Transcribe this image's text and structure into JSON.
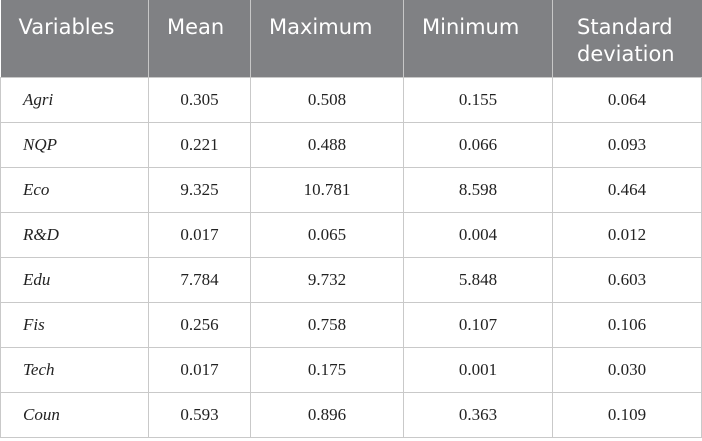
{
  "table": {
    "header": [
      "Variables",
      "Mean",
      "Maximum",
      "Minimum",
      "Standard deviation"
    ],
    "rows": [
      [
        "Agri",
        "0.305",
        "0.508",
        "0.155",
        "0.064"
      ],
      [
        "NQP",
        "0.221",
        "0.488",
        "0.066",
        "0.093"
      ],
      [
        "Eco",
        "9.325",
        "10.781",
        "8.598",
        "0.464"
      ],
      [
        "R&D",
        "0.017",
        "0.065",
        "0.004",
        "0.012"
      ],
      [
        "Edu",
        "7.784",
        "9.732",
        "5.848",
        "0.603"
      ],
      [
        "Fis",
        "0.256",
        "0.758",
        "0.107",
        "0.106"
      ],
      [
        "Tech",
        "0.017",
        "0.175",
        "0.001",
        "0.030"
      ],
      [
        "Coun",
        "0.593",
        "0.896",
        "0.363",
        "0.109"
      ]
    ]
  }
}
